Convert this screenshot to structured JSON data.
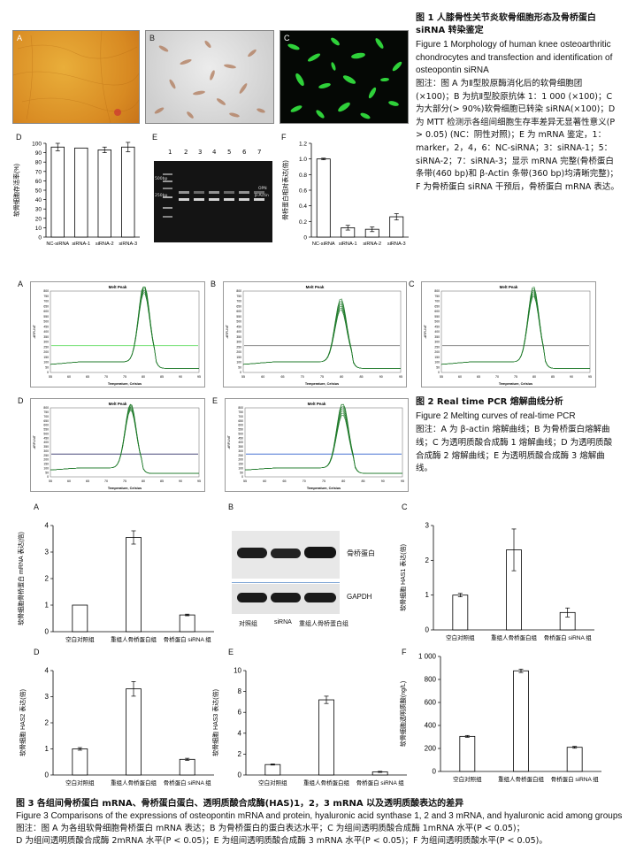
{
  "fig1": {
    "panel_labels": [
      "A",
      "B",
      "C",
      "D",
      "E",
      "F"
    ],
    "title_cn": "图 1 人膝骨性关节炎软骨细胞形态及骨桥蛋白 siRNA 转染鉴定",
    "title_en": "Figure 1 Morphology of human knee osteoarthritic chondrocytes and transfection and identification of osteopontin siRNA",
    "note": "图注：图 A 为Ⅱ型胶原酶消化后的软骨细胞团(×100)；B 为抗Ⅱ型胶原抗体 1：1 000 (×100)；C 为大部分(> 90%)软骨细胞已转染 siRNA(×100)；D 为 MTT 检测示各组间细胞生存率差异无显著性意义(P > 0.05) (NC：阴性对照)；E 为 mRNA 鉴定，1：marker，2，4，6：NC-siRNA；3：siRNA-1；5：siRNA-2；7：siRNA-3；显示 mRNA 完整(骨桥蛋白条带(460 bp)和 β-Actin 条带(360 bp)均清晰完整)；F 为骨桥蛋白 siRNA 干预后，骨桥蛋白 mRNA 表达。",
    "gel": {
      "lanes": [
        "1",
        "2",
        "3",
        "4",
        "5",
        "6",
        "7"
      ],
      "marker_top": "500bp",
      "marker_bottom": "250bp",
      "label_opn": "OPN",
      "label_actin": "β-Actin"
    }
  },
  "fig2": {
    "panel_labels": [
      "A",
      "B",
      "C",
      "D",
      "E"
    ],
    "title_cn": "图 2 Real time PCR 熔解曲线分析",
    "title_en": "Figure 2 Melting curves of real-time PCR",
    "note": "图注：A 为 β-actin 熔解曲线；B 为骨桥蛋白熔解曲线；C 为透明质酸合成酶 1 熔解曲线；D 为透明质酸合成酶 2 熔解曲线；E 为透明质酸合成酶 3 熔解曲线。",
    "plot_title": "Melt Peak",
    "xlabel": "Temperature, Celsius",
    "ylabel": "-dRFU/dT",
    "x_ticks": [
      "55",
      "60",
      "65",
      "70",
      "75",
      "80",
      "85",
      "90",
      "95"
    ],
    "y_ticks": [
      "0",
      "50",
      "100",
      "150",
      "200",
      "250",
      "300",
      "350",
      "400",
      "450",
      "500",
      "550",
      "600",
      "650",
      "700",
      "750",
      "800"
    ]
  },
  "fig3": {
    "panel_labels": [
      "A",
      "B",
      "C",
      "D",
      "E",
      "F"
    ],
    "title_cn": "图 3 各组间骨桥蛋白 mRNA、骨桥蛋白蛋白、透明质酸合成酶(HAS)1，2，3 mRNA 以及透明质酸表达的差异",
    "title_en": "Figure 3 Comparisons of the expressions of osteopontin mRNA and protein, hyaluronic acid synthase 1, 2 and 3 mRNA, and hyaluronic acid among groups",
    "note_line1": "图注：图 A 为各组软骨细胞骨桥蛋白 mRNA 表达；B 为骨桥蛋白的蛋白表达水平；C 为组间透明质酸合成酶 1mRNA 水平(P < 0.05)；",
    "note_line2": "D 为组间透明质酸合成酶 2mRNA 水平(P < 0.05)；E 为组间透明质酸合成酶 3 mRNA 水平(P < 0.05)；F 为组间透明质酸水平(P < 0.05)。",
    "western": {
      "band_opn": "骨桥蛋白",
      "band_gapdh": "GAPDH",
      "lanes": [
        "对照组",
        "siRNA",
        "重组人骨桥蛋白组"
      ]
    }
  },
  "chart_data": [
    {
      "id": "fig1D",
      "type": "bar",
      "categories": [
        "NC-siRNA",
        "siRNA-1",
        "siRNA-2",
        "siRNA-3"
      ],
      "values": [
        96,
        95,
        93,
        96
      ],
      "errors": [
        4,
        0,
        3,
        5
      ],
      "ylabel": "软骨细胞存活率(%)",
      "ylim": [
        0,
        100
      ],
      "yticks": [
        "0",
        "10",
        "20",
        "30",
        "40",
        "50",
        "60",
        "70",
        "80",
        "90",
        "100"
      ]
    },
    {
      "id": "fig1F",
      "type": "bar",
      "categories": [
        "NC-siRNA",
        "siRNA-1",
        "siRNA-2",
        "siRNA-3"
      ],
      "values": [
        1.0,
        0.12,
        0.1,
        0.26
      ],
      "errors": [
        0.01,
        0.03,
        0.03,
        0.04
      ],
      "ylabel": "骨桥蛋白相对表达(倍)",
      "ylim": [
        0,
        1.2
      ],
      "yticks": [
        "0",
        "0.2",
        "0.4",
        "0.6",
        "0.8",
        "1.0",
        "1.2"
      ]
    },
    {
      "id": "fig3A",
      "type": "bar",
      "categories": [
        "空白对照组",
        "重组人骨桥蛋白组",
        "骨桥蛋白 siRNA 组"
      ],
      "values": [
        1.0,
        3.55,
        0.63
      ],
      "errors": [
        0,
        0.25,
        0.03
      ],
      "ylabel": "软骨细胞骨桥蛋白 mRNA 表达(倍)",
      "ylim": [
        0,
        4
      ],
      "yticks": [
        "0",
        "1",
        "2",
        "3",
        "4"
      ]
    },
    {
      "id": "fig3C",
      "type": "bar",
      "categories": [
        "空白对照组",
        "重组人骨桥蛋白组",
        "骨桥蛋白 siRNA 组"
      ],
      "values": [
        1.0,
        2.3,
        0.5
      ],
      "errors": [
        0.05,
        0.6,
        0.13
      ],
      "ylabel": "软骨细胞 HAS1 表达(倍)",
      "ylim": [
        0,
        3
      ],
      "yticks": [
        "0",
        "1",
        "2",
        "3"
      ]
    },
    {
      "id": "fig3D",
      "type": "bar",
      "categories": [
        "空白对照组",
        "重组人骨桥蛋白组",
        "骨桥蛋白 siRNA 组"
      ],
      "values": [
        1.0,
        3.3,
        0.6
      ],
      "errors": [
        0.05,
        0.28,
        0.04
      ],
      "ylabel": "软骨细胞 HAS2 表达(倍)",
      "ylim": [
        0,
        4
      ],
      "yticks": [
        "0",
        "1",
        "2",
        "3",
        "4"
      ]
    },
    {
      "id": "fig3E",
      "type": "bar",
      "categories": [
        "空白对照组",
        "重组人骨桥蛋白组",
        "骨桥蛋白 siRNA 组"
      ],
      "values": [
        1.0,
        7.2,
        0.3
      ],
      "errors": [
        0.05,
        0.35,
        0.05
      ],
      "ylabel": "软骨细胞 HAS3 表达(倍)",
      "ylim": [
        0,
        10
      ],
      "yticks": [
        "0",
        "2",
        "4",
        "6",
        "8",
        "10"
      ]
    },
    {
      "id": "fig3F",
      "type": "bar",
      "categories": [
        "空白对照组",
        "重组人骨桥蛋白组",
        "骨桥蛋白 siRNA 组"
      ],
      "values": [
        305,
        875,
        210
      ],
      "errors": [
        8,
        15,
        8
      ],
      "ylabel": "软骨细胞透明质酸(ng/L)",
      "ylim": [
        0,
        1000
      ],
      "yticks": [
        "0",
        "200",
        "400",
        "600",
        "800",
        "1 000"
      ]
    }
  ]
}
